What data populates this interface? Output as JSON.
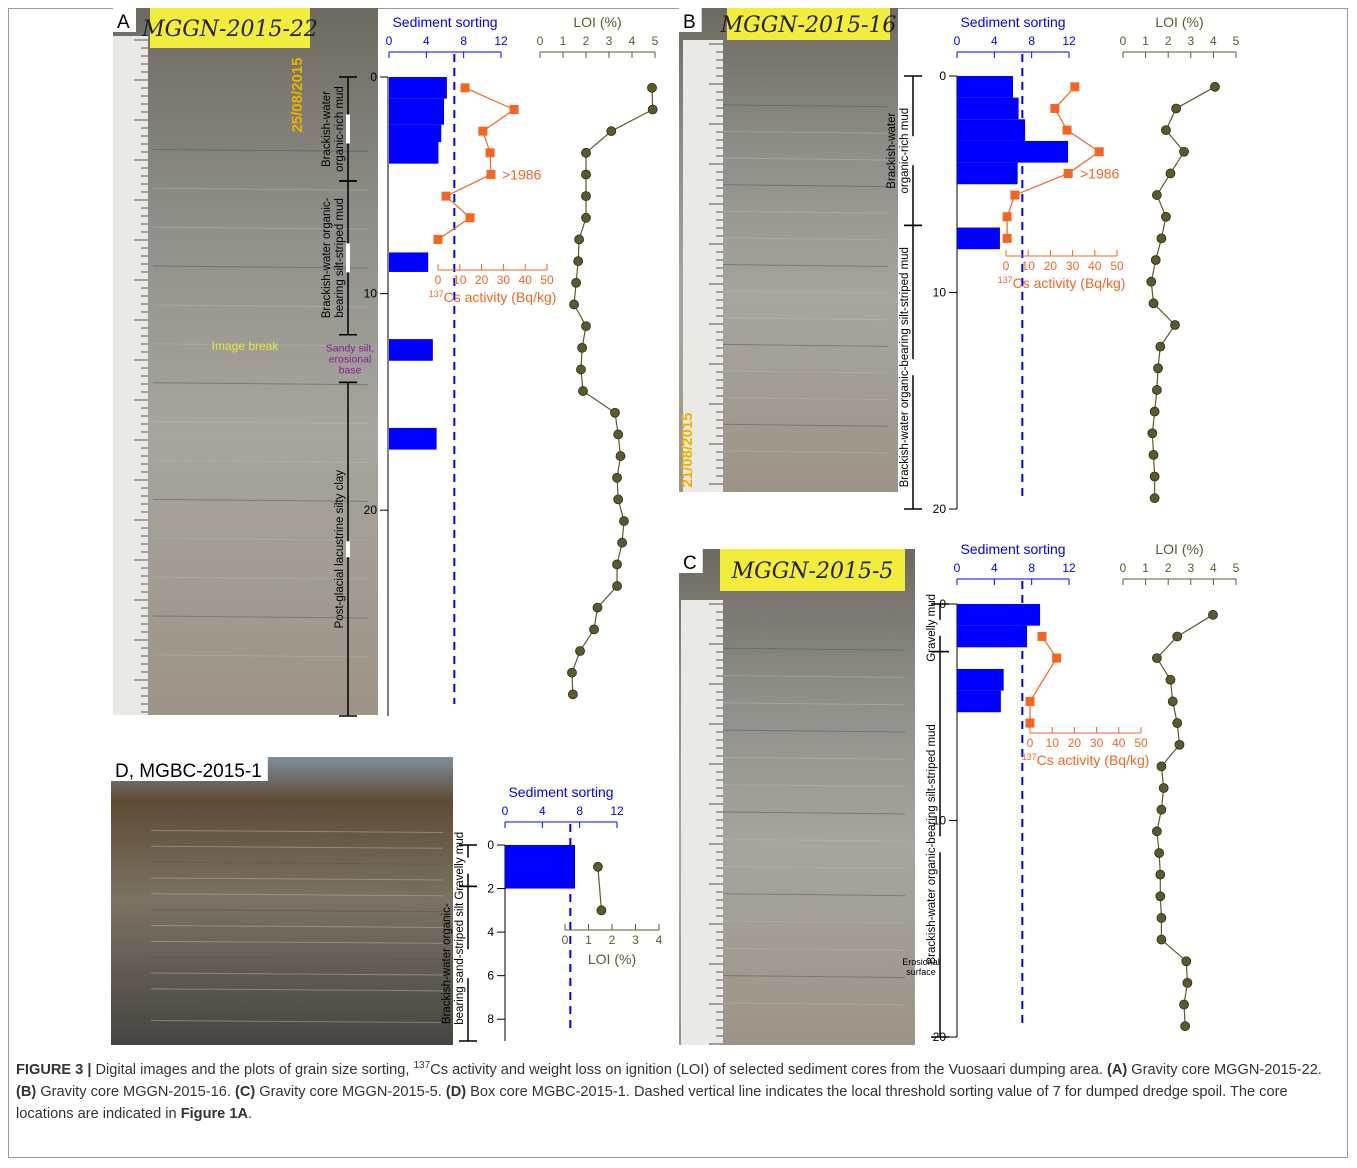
{
  "panels": [
    {
      "label": "A",
      "core": "MGGN-2015-22",
      "date": "25/08/2015",
      "depth": {
        "ylim": [
          0,
          29.5
        ],
        "yticks": [
          0,
          10,
          20
        ]
      },
      "sorting": {
        "title": "Sediment sorting",
        "xlim": [
          0,
          12
        ],
        "xticks": [
          0,
          4,
          8,
          12
        ],
        "threshold": 7,
        "color": "#0000ff",
        "top": [
          0,
          1,
          2.2,
          3,
          8.1,
          12.1,
          16.2
        ],
        "bottom": [
          1,
          2.2,
          3,
          4,
          9,
          13.1,
          17.2
        ],
        "values": [
          6.2,
          5.9,
          5.6,
          5.3,
          4.2,
          4.7,
          5.1
        ]
      },
      "cs": {
        "title_sup": "137",
        "title": "Cs activity (Bq/kg)",
        "xlim": [
          0,
          50
        ],
        "xticks": [
          0,
          10,
          20,
          30,
          40,
          50
        ],
        "color": "#f26522",
        "depth": [
          0.5,
          1.5,
          2.5,
          3.5,
          4.5,
          5.5,
          6.5,
          7.5
        ],
        "values": [
          12.4,
          34.9,
          20.6,
          23.9,
          24.3,
          3.7,
          14.7,
          0
        ],
        "annotations": [
          {
            "text": ">1986",
            "depth": 4.5
          }
        ]
      },
      "loi": {
        "title": "LOI (%)",
        "xlim": [
          0,
          5
        ],
        "xticks": [
          0,
          1,
          2,
          3,
          4,
          5
        ],
        "color": "#5c5a2c",
        "depth": [
          0.5,
          1.5,
          2.5,
          3.5,
          4.5,
          5.5,
          6.5,
          7.5,
          8.5,
          9.5,
          10.5,
          11.5,
          12.5,
          13.5,
          14.5,
          15.5,
          16.5,
          17.5,
          18.5,
          19.5,
          20.5,
          21.5,
          22.5,
          23.5,
          24.5,
          25.5,
          26.5,
          27.5,
          28.5
        ],
        "values": [
          4.87,
          4.9,
          3.1,
          2.0,
          2.0,
          2.0,
          2.0,
          1.7,
          1.66,
          1.57,
          1.48,
          2.0,
          1.83,
          1.78,
          1.87,
          3.26,
          3.4,
          3.5,
          3.35,
          3.4,
          3.65,
          3.57,
          3.35,
          3.35,
          2.5,
          2.35,
          1.74,
          1.39,
          1.43
        ]
      },
      "units": [
        {
          "text": [
            "Brackish-water",
            "organic-rich mud"
          ],
          "top": 0,
          "bottom": 4.8
        },
        {
          "text": [
            "Brackish-water organic-",
            "bearing silt-striped mud"
          ],
          "top": 4.8,
          "bottom": 11.9
        },
        {
          "text": [
            "Sandy silt,",
            "erosional",
            "base"
          ],
          "top": 11.9,
          "bottom": 14.1,
          "horizontal": true,
          "color": "#8b1a9c"
        },
        {
          "text": [
            "Post-glacial lacustrine silty clay"
          ],
          "top": 14.1,
          "bottom": 29.5
        }
      ],
      "notes": [
        {
          "text": [
            "Image break"
          ],
          "depth": 12.6,
          "color": "#e8e83a"
        }
      ]
    },
    {
      "label": "B",
      "core": "MGGN-2015-16",
      "date": "21/08/2015",
      "depth": {
        "ylim": [
          0,
          20
        ],
        "yticks": [
          0,
          10,
          20
        ]
      },
      "sorting": {
        "title": "Sediment sorting",
        "xlim": [
          0,
          12
        ],
        "xticks": [
          0,
          4,
          8,
          12
        ],
        "threshold": 7,
        "color": "#0000ff",
        "top": [
          0,
          1,
          2,
          3,
          4,
          7
        ],
        "bottom": [
          1,
          2,
          3,
          4,
          5,
          8
        ],
        "values": [
          6.0,
          6.6,
          7.3,
          11.9,
          6.5,
          4.6
        ]
      },
      "cs": {
        "title_sup": "137",
        "title": "Cs activity (Bq/kg)",
        "xlim": [
          0,
          50
        ],
        "xticks": [
          0,
          10,
          20,
          30,
          40,
          50
        ],
        "color": "#f26522",
        "depth": [
          0.5,
          1.5,
          2.5,
          3.5,
          4.5,
          5.5,
          6.5,
          7.5
        ],
        "values": [
          31,
          22,
          27.5,
          42,
          28,
          4,
          0.5,
          0.5
        ],
        "annotations": [
          {
            "text": ">1986",
            "depth": 4.5
          }
        ]
      },
      "loi": {
        "title": "LOI (%)",
        "xlim": [
          0,
          5
        ],
        "xticks": [
          0,
          1,
          2,
          3,
          4,
          5
        ],
        "color": "#5c5a2c",
        "depth": [
          0.5,
          1.5,
          2.5,
          3.5,
          4.5,
          5.5,
          6.5,
          7.5,
          8.5,
          9.5,
          10.5,
          11.5,
          12.5,
          13.5,
          14.5,
          15.5,
          16.5,
          17.5,
          18.5,
          19.5
        ],
        "values": [
          4.07,
          2.35,
          1.9,
          2.7,
          2.1,
          1.5,
          1.9,
          1.7,
          1.45,
          1.25,
          1.35,
          2.3,
          1.65,
          1.55,
          1.5,
          1.4,
          1.3,
          1.35,
          1.4,
          1.4
        ]
      },
      "units": [
        {
          "text": [
            "Brackish-water",
            "organic-rich mud"
          ],
          "top": 0,
          "bottom": 6.9
        },
        {
          "text": [
            "Brackish-water organic-bearing silt-striped mud"
          ],
          "top": 6.9,
          "bottom": 20
        }
      ]
    },
    {
      "label": "C",
      "core": "MGGN-2015-5",
      "depth": {
        "ylim": [
          0,
          20
        ],
        "yticks": [
          0,
          10,
          20
        ]
      },
      "sorting": {
        "title": "Sediment sorting",
        "xlim": [
          0,
          12
        ],
        "xticks": [
          0,
          4,
          8,
          12
        ],
        "threshold": 7,
        "color": "#0000ff",
        "top": [
          0,
          1,
          3,
          4
        ],
        "bottom": [
          1,
          2,
          4,
          5
        ],
        "values": [
          8.9,
          7.5,
          5.0,
          4.7
        ]
      },
      "cs": {
        "title_sup": "137",
        "title": "Cs activity (Bq/kg)",
        "xlim": [
          0,
          50
        ],
        "xticks": [
          0,
          10,
          20,
          30,
          40,
          50
        ],
        "color": "#f26522",
        "depth": [
          1.5,
          2.5,
          4.5,
          5.5
        ],
        "values": [
          5.4,
          12,
          0,
          0
        ]
      },
      "loi": {
        "title": "LOI (%)",
        "xlim": [
          0,
          5
        ],
        "xticks": [
          0,
          1,
          2,
          3,
          4,
          5
        ],
        "color": "#5c5a2c",
        "depth": [
          0.5,
          1.5,
          2.5,
          3.5,
          4.5,
          5.5,
          6.5,
          7.5,
          8.5,
          9.5,
          10.5,
          11.5,
          12.5,
          13.5,
          14.5,
          15.5,
          16.5,
          17.5,
          18.5,
          19.5
        ],
        "values": [
          3.98,
          2.4,
          1.5,
          2.1,
          2.2,
          2.4,
          2.5,
          1.7,
          1.8,
          1.7,
          1.5,
          1.6,
          1.65,
          1.65,
          1.7,
          1.7,
          2.8,
          2.85,
          2.7,
          2.75
        ]
      },
      "units": [
        {
          "text": [
            "Gravelly mud"
          ],
          "top": 0,
          "bottom": 2.2
        },
        {
          "text": [
            "Brackish-water organic-bearing silt-striped mud"
          ],
          "top": 2.2,
          "bottom": 20
        }
      ],
      "notes": [
        {
          "text": [
            "Erosional",
            "surface"
          ],
          "depth": 16.9,
          "color": "#000000"
        }
      ]
    },
    {
      "label": "D, MGBC-2015-1",
      "depth": {
        "ylim": [
          0,
          9
        ],
        "yticks": [
          0,
          2,
          4,
          6,
          8
        ]
      },
      "sorting": {
        "title": "Sediment sorting",
        "xlim": [
          0,
          12
        ],
        "xticks": [
          0,
          4,
          8,
          12
        ],
        "threshold": 7,
        "color": "#0000ff",
        "top": [
          0
        ],
        "bottom": [
          2
        ],
        "values": [
          7.5
        ]
      },
      "loi": {
        "title": "LOI (%)",
        "xlim": [
          0,
          4
        ],
        "xticks": [
          0,
          1,
          2,
          3,
          4
        ],
        "color": "#5c5a2c",
        "depth": [
          1,
          3
        ],
        "values": [
          1.4,
          1.55
        ]
      },
      "units": [
        {
          "text": [
            "Gravelly mud"
          ],
          "top": 0,
          "bottom": 1.9
        },
        {
          "text": [
            "Brackish-water organic-",
            "bearing sand-striped silt"
          ],
          "top": 1.9,
          "bottom": 9
        }
      ]
    }
  ],
  "caption": [
    {
      "text": "FIGURE 3 | ",
      "bold": true
    },
    {
      "text": "Digital images and the plots of grain size sorting, "
    },
    {
      "text": "137",
      "sup": true
    },
    {
      "text": "Cs activity and weight loss on ignition (LOI) of selected sediment cores from the Vuosaari dumping area. "
    },
    {
      "text": "(A)",
      "bold": true
    },
    {
      "text": " Gravity core MGGN-2015-22. "
    },
    {
      "text": "(B)",
      "bold": true
    },
    {
      "text": " Gravity core MGGN-2015-16. "
    },
    {
      "text": "(C)",
      "bold": true
    },
    {
      "text": " Gravity core MGGN-2015-5. "
    },
    {
      "text": "(D)",
      "bold": true
    },
    {
      "text": " Box core MGBC-2015-1. Dashed vertical line indicates the local threshold sorting value of 7 for dumped dredge spoil. The core locations are indicated in "
    },
    {
      "text": "Figure 1A",
      "bold": true
    },
    {
      "text": "."
    }
  ]
}
